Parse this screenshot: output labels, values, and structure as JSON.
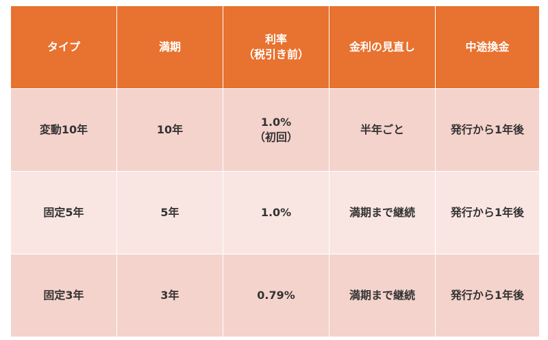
{
  "table": {
    "headers": [
      {
        "lines": [
          "タイプ"
        ]
      },
      {
        "lines": [
          "満期"
        ]
      },
      {
        "lines": [
          "利率",
          "（税引き前）"
        ]
      },
      {
        "lines": [
          "金利の見直し"
        ]
      },
      {
        "lines": [
          "中途換金"
        ]
      }
    ],
    "rows": [
      [
        {
          "lines": [
            "変動10年"
          ]
        },
        {
          "lines": [
            "10年"
          ]
        },
        {
          "lines": [
            "1.0%",
            "（初回）"
          ]
        },
        {
          "lines": [
            "半年ごと"
          ]
        },
        {
          "lines": [
            "発行から1年後"
          ]
        }
      ],
      [
        {
          "lines": [
            "固定5年"
          ]
        },
        {
          "lines": [
            "5年"
          ]
        },
        {
          "lines": [
            "1.0%"
          ]
        },
        {
          "lines": [
            "満期まで継続"
          ]
        },
        {
          "lines": [
            "発行から1年後"
          ]
        }
      ],
      [
        {
          "lines": [
            "固定3年"
          ]
        },
        {
          "lines": [
            "3年"
          ]
        },
        {
          "lines": [
            "0.79%"
          ]
        },
        {
          "lines": [
            "満期まで継続"
          ]
        },
        {
          "lines": [
            "発行から1年後"
          ]
        }
      ]
    ]
  },
  "colors": {
    "header_bg": "#e8722f",
    "header_text": "#ffffff",
    "row_bg_dark": "#f4d3cc",
    "row_bg_light": "#f9e6e2",
    "cell_text": "#333333"
  }
}
